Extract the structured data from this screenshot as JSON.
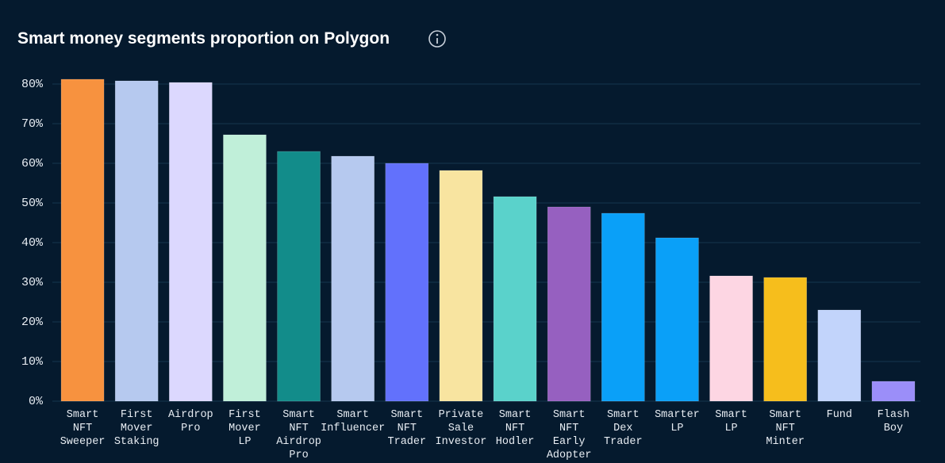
{
  "chart_data": {
    "type": "bar",
    "title": "Smart money segments proportion on Polygon",
    "categories": [
      "Smart\nNFT\nSweeper",
      "First\nMover\nStaking",
      "Airdrop\nPro",
      "First\nMover\nLP",
      "Smart\nNFT\nAirdrop\nPro",
      "Smart\nInfluencer",
      "Smart\nNFT\nTrader",
      "Private\nSale\nInvestor",
      "Smart\nNFT\nHodler",
      "Smart\nNFT\nEarly\nAdopter",
      "Smart\nDex\nTrader",
      "Smarter\nLP",
      "Smart\nLP",
      "Smart\nNFT\nMinter",
      "Fund",
      "Flash\nBoy"
    ],
    "values": [
      81.2,
      80.8,
      80.4,
      67.2,
      63,
      61.8,
      60,
      58.2,
      51.6,
      49,
      47.4,
      41.2,
      31.6,
      31.2,
      23,
      5
    ],
    "colors": [
      "#f7923f",
      "#b6c9ef",
      "#dcd8fe",
      "#c0efd9",
      "#128c8a",
      "#b6c9ef",
      "#6271fc",
      "#f8e4a0",
      "#5ad2cb",
      "#9660c0",
      "#0aa0f8",
      "#0aa0f8",
      "#fdd6e3",
      "#f6be1c",
      "#c2d4fb",
      "#9b8ef9"
    ],
    "ylim": [
      0,
      80
    ],
    "yticks": [
      {
        "value": 0,
        "label": "0%"
      },
      {
        "value": 10,
        "label": "10%"
      },
      {
        "value": 20,
        "label": "20%"
      },
      {
        "value": 30,
        "label": "30%"
      },
      {
        "value": 40,
        "label": "40%"
      },
      {
        "value": 50,
        "label": "50%"
      },
      {
        "value": 60,
        "label": "60%"
      },
      {
        "value": 70,
        "label": "70%"
      },
      {
        "value": 80,
        "label": "80%"
      }
    ],
    "grid": true
  }
}
